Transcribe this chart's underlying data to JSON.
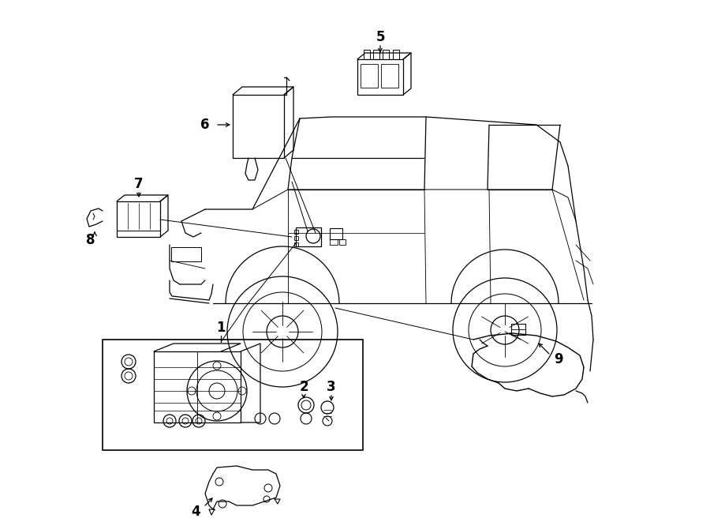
{
  "background_color": "#ffffff",
  "line_color": "#000000",
  "figure_width": 9.0,
  "figure_height": 6.61,
  "dpi": 100,
  "lw": 0.9
}
